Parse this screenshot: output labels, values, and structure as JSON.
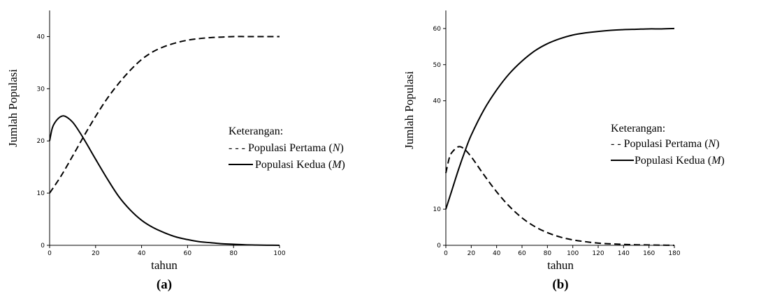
{
  "chart_data": [
    {
      "type": "line",
      "panel_label": "(a)",
      "xlabel": "tahun",
      "ylabel": "Jumlah Populasi",
      "xlim": [
        0,
        100
      ],
      "ylim": [
        0,
        45
      ],
      "x_ticks": [
        0,
        20,
        40,
        60,
        80,
        100
      ],
      "y_ticks": [
        0,
        10,
        20,
        30,
        40
      ],
      "legend": {
        "title": "Keterangan:",
        "entries": [
          {
            "prefix": "- - - ",
            "text": "Populasi Pertama (",
            "symbol": "N",
            "suffix": ")"
          },
          {
            "prefix": "",
            "text": "Populasi Kedua (",
            "symbol": "M",
            "suffix": ")"
          }
        ]
      },
      "series": [
        {
          "style": "dashed",
          "x": [
            0,
            5,
            10,
            15,
            20,
            25,
            30,
            35,
            40,
            45,
            50,
            55,
            60,
            65,
            70,
            75,
            80,
            85,
            90,
            95,
            100
          ],
          "y": [
            10,
            13.3,
            17.1,
            21.0,
            24.7,
            28.1,
            31.0,
            33.5,
            35.6,
            37.1,
            38.1,
            38.8,
            39.3,
            39.6,
            39.8,
            39.9,
            40.0,
            40.0,
            40.0,
            40.0,
            40.0
          ]
        },
        {
          "style": "solid",
          "x": [
            0,
            1,
            2,
            4,
            6,
            8,
            10,
            12,
            15,
            20,
            25,
            30,
            35,
            40,
            45,
            50,
            55,
            60,
            65,
            70,
            75,
            80,
            85,
            90,
            95,
            100
          ],
          "y": [
            20,
            22.2,
            23.3,
            24.4,
            24.8,
            24.4,
            23.6,
            22.4,
            20.3,
            16.5,
            12.8,
            9.4,
            6.8,
            4.8,
            3.4,
            2.4,
            1.6,
            1.1,
            0.7,
            0.5,
            0.3,
            0.2,
            0.1,
            0.05,
            0.02,
            0
          ]
        }
      ]
    },
    {
      "type": "line",
      "panel_label": "(b)",
      "xlabel": "tahun",
      "ylabel": "Jumlah Populasi",
      "xlim": [
        0,
        180
      ],
      "ylim": [
        0,
        65
      ],
      "x_ticks": [
        0,
        20,
        40,
        60,
        80,
        100,
        120,
        140,
        160,
        180
      ],
      "y_ticks": [
        0,
        10,
        40,
        50,
        60
      ],
      "legend": {
        "title": "Keterangan:",
        "entries": [
          {
            "prefix": "- - ",
            "text": "Populasi Pertama (",
            "symbol": "N",
            "suffix": ")"
          },
          {
            "prefix": "",
            "text": "Populasi Kedua (",
            "symbol": "M",
            "suffix": ")"
          }
        ]
      },
      "series": [
        {
          "style": "dashed",
          "x": [
            0,
            3,
            6,
            10,
            14,
            20,
            30,
            40,
            50,
            60,
            70,
            80,
            90,
            100,
            110,
            120,
            130,
            140,
            150,
            160,
            170,
            180
          ],
          "y": [
            20,
            24.5,
            26.2,
            27.3,
            26.8,
            24.5,
            19.5,
            14.8,
            10.8,
            7.6,
            5.2,
            3.5,
            2.3,
            1.5,
            1.0,
            0.6,
            0.4,
            0.25,
            0.15,
            0.1,
            0.05,
            0
          ]
        },
        {
          "style": "solid",
          "x": [
            0,
            5,
            10,
            15,
            20,
            30,
            40,
            50,
            60,
            70,
            80,
            90,
            100,
            110,
            120,
            130,
            140,
            150,
            160,
            170,
            180
          ],
          "y": [
            10,
            15.5,
            21,
            26,
            30.5,
            37.5,
            43.0,
            47.5,
            51.0,
            53.8,
            55.8,
            57.2,
            58.2,
            58.8,
            59.2,
            59.5,
            59.7,
            59.8,
            59.9,
            59.9,
            60.0
          ]
        }
      ]
    }
  ]
}
